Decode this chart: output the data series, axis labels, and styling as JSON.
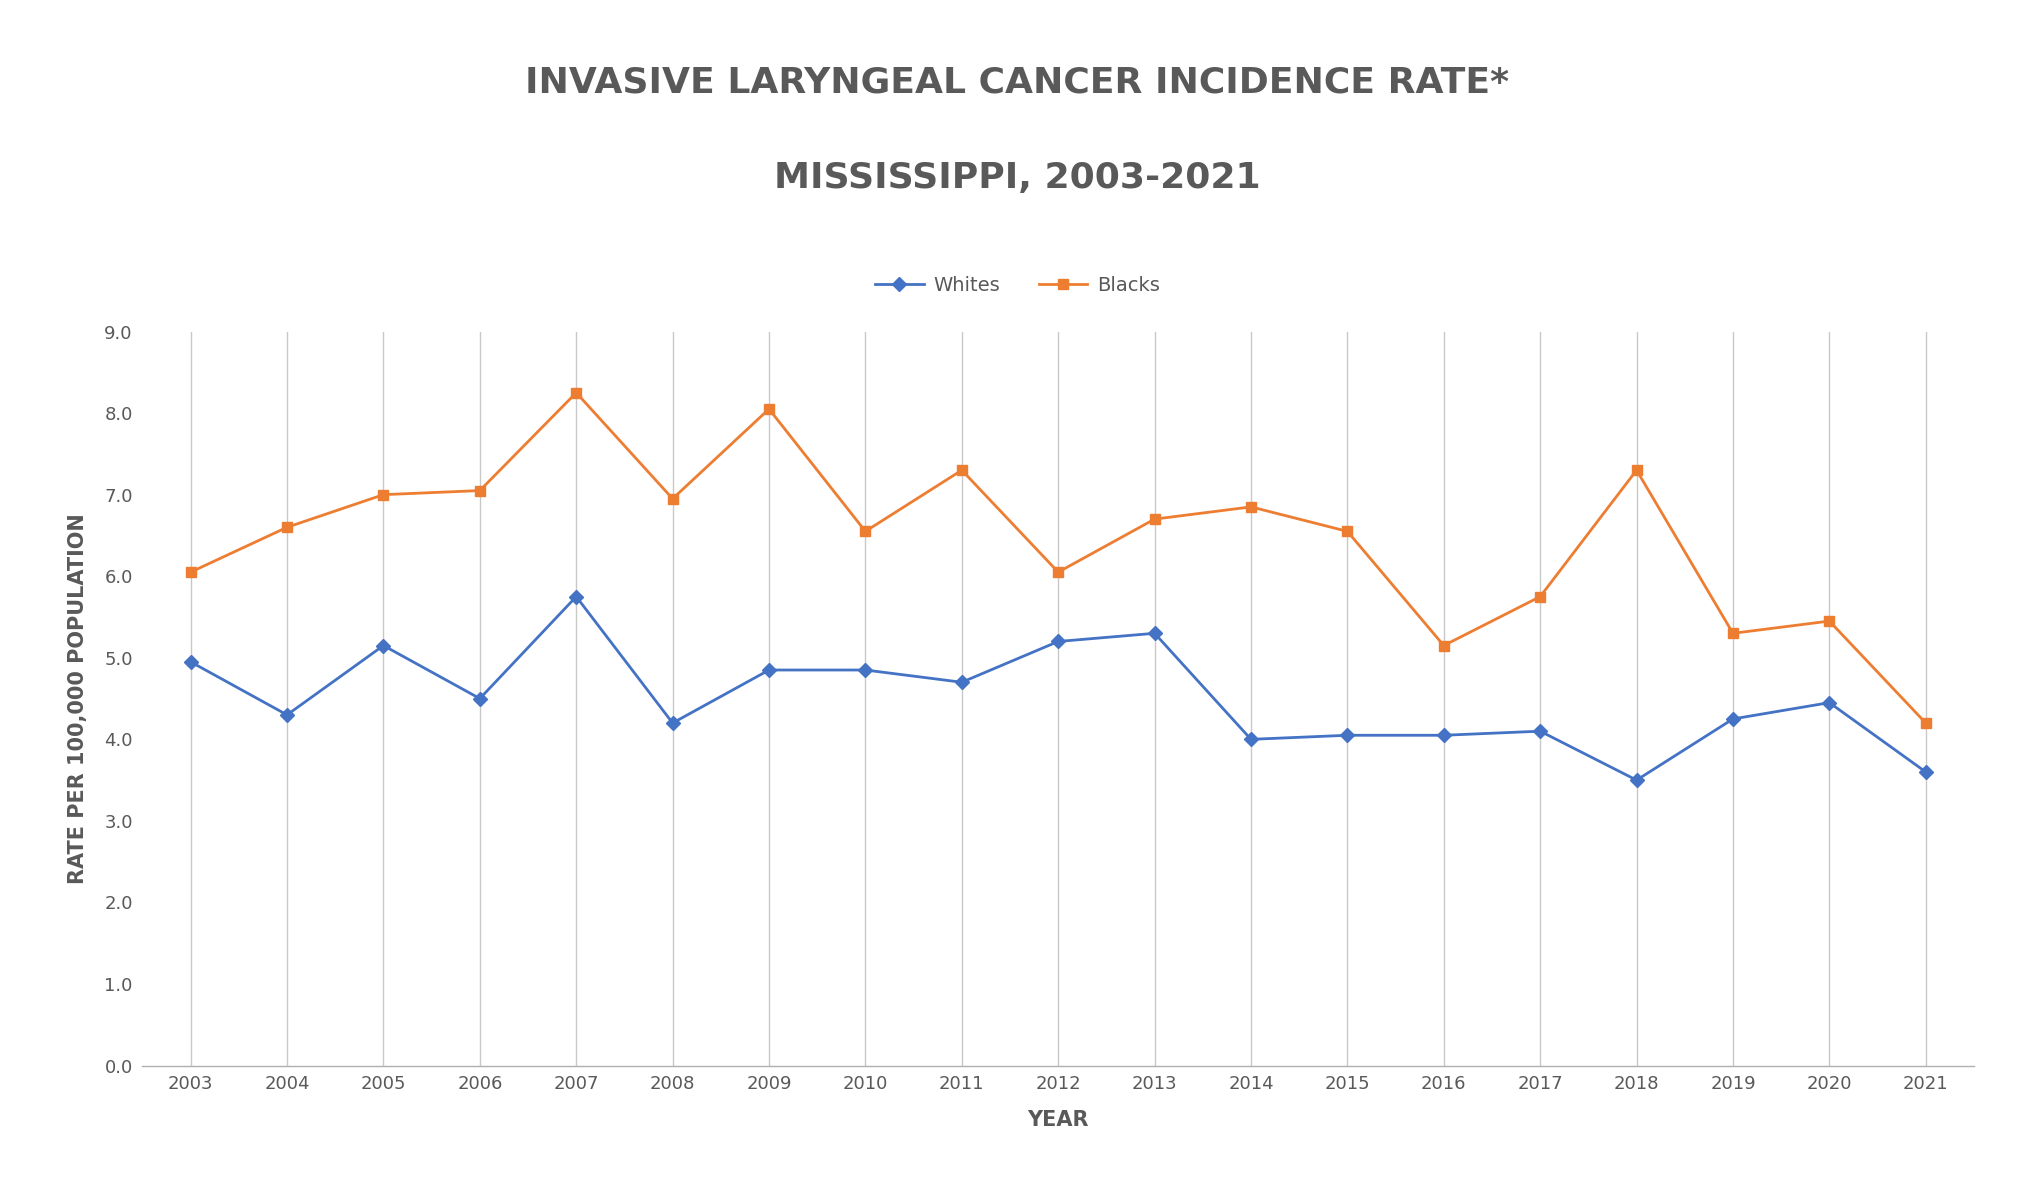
{
  "title_line1": "INVASIVE LARYNGEAL CANCER INCIDENCE RATE*",
  "title_line2": "MISSISSIPPI, 2003-2021",
  "xlabel": "YEAR",
  "ylabel": "RATE PER 100,000 POPULATION",
  "years": [
    2003,
    2004,
    2005,
    2006,
    2007,
    2008,
    2009,
    2010,
    2011,
    2012,
    2013,
    2014,
    2015,
    2016,
    2017,
    2018,
    2019,
    2020,
    2021
  ],
  "whites": [
    4.95,
    4.3,
    5.15,
    4.5,
    5.75,
    4.2,
    4.85,
    4.85,
    4.7,
    5.2,
    5.3,
    4.0,
    4.05,
    4.05,
    4.1,
    3.5,
    4.25,
    4.45,
    3.6
  ],
  "blacks": [
    6.05,
    6.6,
    7.0,
    7.05,
    8.25,
    6.95,
    8.05,
    6.55,
    7.3,
    6.05,
    6.7,
    6.85,
    6.55,
    5.15,
    5.75,
    7.3,
    5.3,
    5.45,
    4.2
  ],
  "whites_color": "#4472C4",
  "blacks_color": "#ED7D31",
  "whites_label": "Whites",
  "blacks_label": "Blacks",
  "ylim": [
    0.0,
    9.0
  ],
  "yticks": [
    0.0,
    1.0,
    2.0,
    3.0,
    4.0,
    5.0,
    6.0,
    7.0,
    8.0,
    9.0
  ],
  "background_color": "#FFFFFF",
  "plot_bg_color": "#FFFFFF",
  "grid_color": "#C8C8C8",
  "title_fontsize": 26,
  "axis_label_fontsize": 15,
  "tick_fontsize": 13,
  "legend_fontsize": 14,
  "line_width": 2.0,
  "marker_size": 7,
  "text_color": "#595959"
}
